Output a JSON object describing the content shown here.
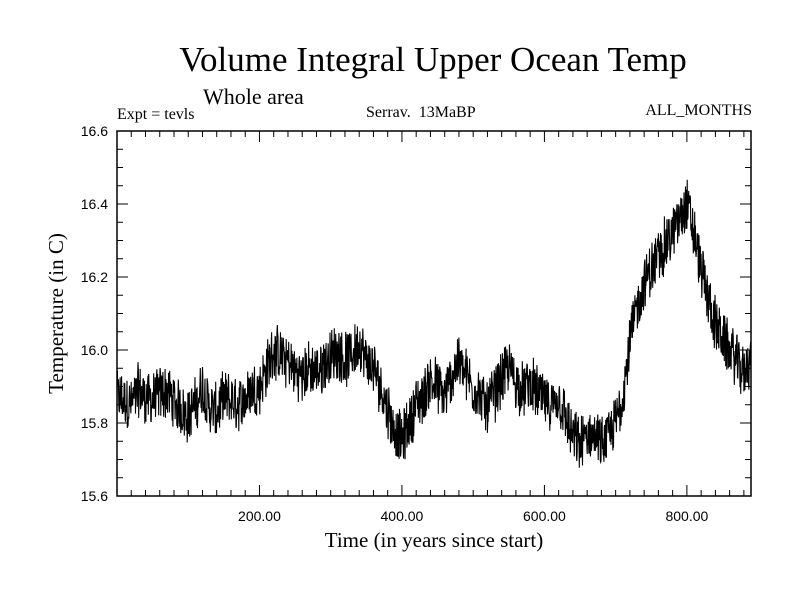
{
  "header": {
    "title": "Volume Integral Upper Ocean Temp",
    "subtitle": "Whole area",
    "experiment": "Expt = tevls",
    "stage": "Serrav.  13MaBP",
    "months": "ALL_MONTHS"
  },
  "chart_data": {
    "type": "line",
    "title": "Volume Integral Upper Ocean Temp",
    "subtitle": "Whole area",
    "xlabel": "Time (in years since start)",
    "ylabel": "Temperature (in C)",
    "xlim": [
      0,
      890
    ],
    "ylim": [
      15.6,
      16.6
    ],
    "x_ticks": [
      200,
      400,
      600,
      800
    ],
    "x_tick_labels": [
      "200.00",
      "400.00",
      "600.00",
      "800.00"
    ],
    "y_ticks": [
      15.6,
      15.8,
      16.0,
      16.2,
      16.4,
      16.6
    ],
    "y_tick_labels": [
      "15.6",
      "15.8",
      "16.0",
      "16.2",
      "16.4",
      "16.6"
    ],
    "series": [
      {
        "name": "Volume integral upper ocean temperature",
        "band_width": 0.14,
        "x": [
          0,
          10,
          20,
          30,
          40,
          50,
          60,
          70,
          80,
          90,
          100,
          110,
          120,
          130,
          140,
          150,
          160,
          170,
          180,
          190,
          200,
          210,
          220,
          230,
          240,
          250,
          260,
          270,
          280,
          290,
          300,
          310,
          320,
          330,
          340,
          350,
          360,
          370,
          380,
          390,
          400,
          410,
          420,
          430,
          440,
          450,
          460,
          470,
          480,
          490,
          500,
          510,
          520,
          530,
          540,
          550,
          560,
          570,
          580,
          590,
          600,
          610,
          620,
          630,
          640,
          650,
          660,
          670,
          680,
          690,
          700,
          710,
          720,
          730,
          740,
          750,
          760,
          770,
          780,
          790,
          800,
          810,
          820,
          830,
          840,
          850,
          860,
          870,
          880,
          890
        ],
        "values": [
          15.87,
          15.86,
          15.85,
          15.89,
          15.87,
          15.86,
          15.88,
          15.89,
          15.86,
          15.84,
          15.82,
          15.85,
          15.9,
          15.84,
          15.83,
          15.87,
          15.86,
          15.85,
          15.87,
          15.89,
          15.9,
          15.95,
          16.0,
          15.98,
          15.97,
          15.94,
          15.93,
          15.95,
          15.94,
          15.96,
          15.98,
          16.0,
          15.97,
          15.99,
          16.02,
          15.97,
          15.95,
          15.9,
          15.84,
          15.78,
          15.75,
          15.8,
          15.85,
          15.87,
          15.92,
          15.9,
          15.87,
          15.93,
          15.97,
          15.93,
          15.9,
          15.87,
          15.84,
          15.88,
          15.92,
          15.95,
          15.91,
          15.89,
          15.91,
          15.88,
          15.86,
          15.84,
          15.87,
          15.81,
          15.76,
          15.74,
          15.76,
          15.77,
          15.74,
          15.76,
          15.8,
          15.88,
          16.02,
          16.12,
          16.18,
          16.22,
          16.26,
          16.29,
          16.32,
          16.36,
          16.4,
          16.32,
          16.22,
          16.14,
          16.07,
          16.03,
          16.0,
          15.97,
          15.94,
          15.98
        ]
      }
    ]
  }
}
